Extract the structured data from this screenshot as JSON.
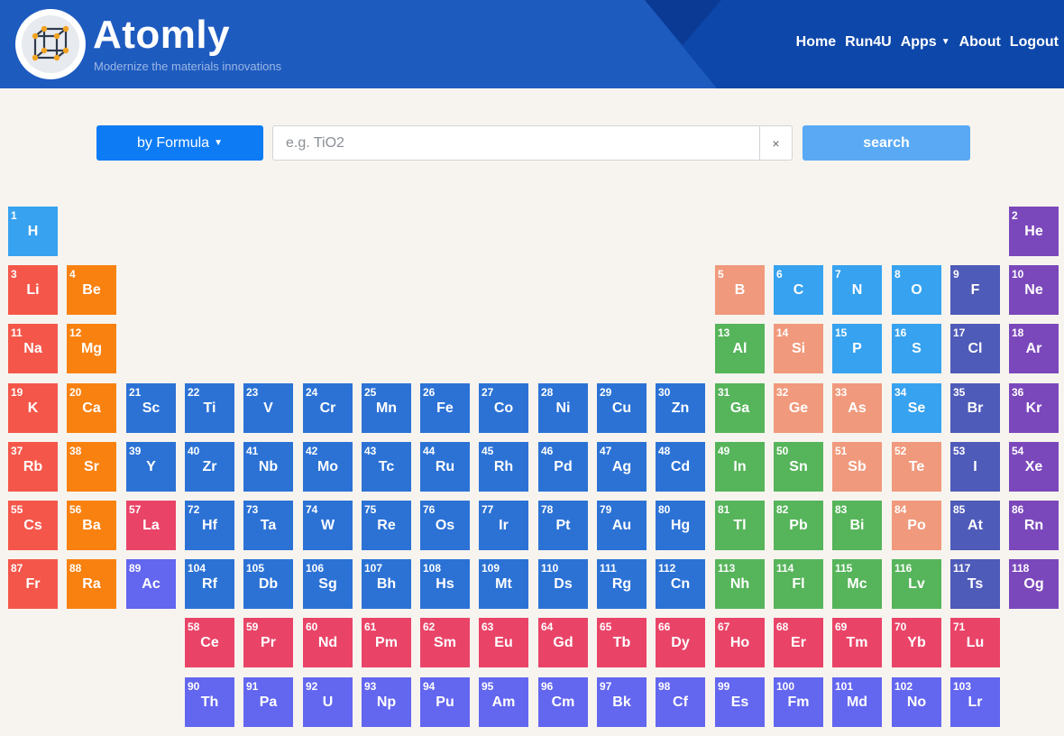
{
  "header": {
    "brand": "Atomly",
    "tagline": "Modernize the materials innovations",
    "nav": [
      {
        "label": "Home",
        "name": "nav-home"
      },
      {
        "label": "Run4U",
        "name": "nav-run4u"
      },
      {
        "label": "Apps",
        "name": "nav-apps",
        "dropdown": true
      },
      {
        "label": "About",
        "name": "nav-about"
      },
      {
        "label": "Logout",
        "name": "nav-logout"
      }
    ]
  },
  "search": {
    "mode_label": "by Formula",
    "placeholder": "e.g. TiO2",
    "value": "",
    "clear_label": "×",
    "submit_label": "search"
  },
  "colors": {
    "alkali": "#f4574a",
    "alkaline": "#f98110",
    "transition": "#2c72d5",
    "post_transition": "#56b45a",
    "metalloid": "#f0997c",
    "nonmetal": "#37a2ef",
    "halogen": "#4f5bb8",
    "noble": "#7b48bb",
    "lanthanide": "#e94468",
    "actinide": "#6366ef",
    "hydrogen": "#37a2ef"
  },
  "elements": [
    {
      "n": "1",
      "s": "H",
      "row": 1,
      "col": 1,
      "cat": "hydrogen"
    },
    {
      "n": "2",
      "s": "He",
      "row": 1,
      "col": 18,
      "cat": "noble"
    },
    {
      "n": "3",
      "s": "Li",
      "row": 2,
      "col": 1,
      "cat": "alkali"
    },
    {
      "n": "4",
      "s": "Be",
      "row": 2,
      "col": 2,
      "cat": "alkaline"
    },
    {
      "n": "5",
      "s": "B",
      "row": 2,
      "col": 13,
      "cat": "metalloid"
    },
    {
      "n": "6",
      "s": "C",
      "row": 2,
      "col": 14,
      "cat": "nonmetal"
    },
    {
      "n": "7",
      "s": "N",
      "row": 2,
      "col": 15,
      "cat": "nonmetal"
    },
    {
      "n": "8",
      "s": "O",
      "row": 2,
      "col": 16,
      "cat": "nonmetal"
    },
    {
      "n": "9",
      "s": "F",
      "row": 2,
      "col": 17,
      "cat": "halogen"
    },
    {
      "n": "10",
      "s": "Ne",
      "row": 2,
      "col": 18,
      "cat": "noble"
    },
    {
      "n": "11",
      "s": "Na",
      "row": 3,
      "col": 1,
      "cat": "alkali"
    },
    {
      "n": "12",
      "s": "Mg",
      "row": 3,
      "col": 2,
      "cat": "alkaline"
    },
    {
      "n": "13",
      "s": "Al",
      "row": 3,
      "col": 13,
      "cat": "post_transition"
    },
    {
      "n": "14",
      "s": "Si",
      "row": 3,
      "col": 14,
      "cat": "metalloid"
    },
    {
      "n": "15",
      "s": "P",
      "row": 3,
      "col": 15,
      "cat": "nonmetal"
    },
    {
      "n": "16",
      "s": "S",
      "row": 3,
      "col": 16,
      "cat": "nonmetal"
    },
    {
      "n": "17",
      "s": "Cl",
      "row": 3,
      "col": 17,
      "cat": "halogen"
    },
    {
      "n": "18",
      "s": "Ar",
      "row": 3,
      "col": 18,
      "cat": "noble"
    },
    {
      "n": "19",
      "s": "K",
      "row": 4,
      "col": 1,
      "cat": "alkali"
    },
    {
      "n": "20",
      "s": "Ca",
      "row": 4,
      "col": 2,
      "cat": "alkaline"
    },
    {
      "n": "21",
      "s": "Sc",
      "row": 4,
      "col": 3,
      "cat": "transition"
    },
    {
      "n": "22",
      "s": "Ti",
      "row": 4,
      "col": 4,
      "cat": "transition"
    },
    {
      "n": "23",
      "s": "V",
      "row": 4,
      "col": 5,
      "cat": "transition"
    },
    {
      "n": "24",
      "s": "Cr",
      "row": 4,
      "col": 6,
      "cat": "transition"
    },
    {
      "n": "25",
      "s": "Mn",
      "row": 4,
      "col": 7,
      "cat": "transition"
    },
    {
      "n": "26",
      "s": "Fe",
      "row": 4,
      "col": 8,
      "cat": "transition"
    },
    {
      "n": "27",
      "s": "Co",
      "row": 4,
      "col": 9,
      "cat": "transition"
    },
    {
      "n": "28",
      "s": "Ni",
      "row": 4,
      "col": 10,
      "cat": "transition"
    },
    {
      "n": "29",
      "s": "Cu",
      "row": 4,
      "col": 11,
      "cat": "transition"
    },
    {
      "n": "30",
      "s": "Zn",
      "row": 4,
      "col": 12,
      "cat": "transition"
    },
    {
      "n": "31",
      "s": "Ga",
      "row": 4,
      "col": 13,
      "cat": "post_transition"
    },
    {
      "n": "32",
      "s": "Ge",
      "row": 4,
      "col": 14,
      "cat": "metalloid"
    },
    {
      "n": "33",
      "s": "As",
      "row": 4,
      "col": 15,
      "cat": "metalloid"
    },
    {
      "n": "34",
      "s": "Se",
      "row": 4,
      "col": 16,
      "cat": "nonmetal"
    },
    {
      "n": "35",
      "s": "Br",
      "row": 4,
      "col": 17,
      "cat": "halogen"
    },
    {
      "n": "36",
      "s": "Kr",
      "row": 4,
      "col": 18,
      "cat": "noble"
    },
    {
      "n": "37",
      "s": "Rb",
      "row": 5,
      "col": 1,
      "cat": "alkali"
    },
    {
      "n": "38",
      "s": "Sr",
      "row": 5,
      "col": 2,
      "cat": "alkaline"
    },
    {
      "n": "39",
      "s": "Y",
      "row": 5,
      "col": 3,
      "cat": "transition"
    },
    {
      "n": "40",
      "s": "Zr",
      "row": 5,
      "col": 4,
      "cat": "transition"
    },
    {
      "n": "41",
      "s": "Nb",
      "row": 5,
      "col": 5,
      "cat": "transition"
    },
    {
      "n": "42",
      "s": "Mo",
      "row": 5,
      "col": 6,
      "cat": "transition"
    },
    {
      "n": "43",
      "s": "Tc",
      "row": 5,
      "col": 7,
      "cat": "transition"
    },
    {
      "n": "44",
      "s": "Ru",
      "row": 5,
      "col": 8,
      "cat": "transition"
    },
    {
      "n": "45",
      "s": "Rh",
      "row": 5,
      "col": 9,
      "cat": "transition"
    },
    {
      "n": "46",
      "s": "Pd",
      "row": 5,
      "col": 10,
      "cat": "transition"
    },
    {
      "n": "47",
      "s": "Ag",
      "row": 5,
      "col": 11,
      "cat": "transition"
    },
    {
      "n": "48",
      "s": "Cd",
      "row": 5,
      "col": 12,
      "cat": "transition"
    },
    {
      "n": "49",
      "s": "In",
      "row": 5,
      "col": 13,
      "cat": "post_transition"
    },
    {
      "n": "50",
      "s": "Sn",
      "row": 5,
      "col": 14,
      "cat": "post_transition"
    },
    {
      "n": "51",
      "s": "Sb",
      "row": 5,
      "col": 15,
      "cat": "metalloid"
    },
    {
      "n": "52",
      "s": "Te",
      "row": 5,
      "col": 16,
      "cat": "metalloid"
    },
    {
      "n": "53",
      "s": "I",
      "row": 5,
      "col": 17,
      "cat": "halogen"
    },
    {
      "n": "54",
      "s": "Xe",
      "row": 5,
      "col": 18,
      "cat": "noble"
    },
    {
      "n": "55",
      "s": "Cs",
      "row": 6,
      "col": 1,
      "cat": "alkali"
    },
    {
      "n": "56",
      "s": "Ba",
      "row": 6,
      "col": 2,
      "cat": "alkaline"
    },
    {
      "n": "57",
      "s": "La",
      "row": 6,
      "col": 3,
      "cat": "lanthanide"
    },
    {
      "n": "72",
      "s": "Hf",
      "row": 6,
      "col": 4,
      "cat": "transition"
    },
    {
      "n": "73",
      "s": "Ta",
      "row": 6,
      "col": 5,
      "cat": "transition"
    },
    {
      "n": "74",
      "s": "W",
      "row": 6,
      "col": 6,
      "cat": "transition"
    },
    {
      "n": "75",
      "s": "Re",
      "row": 6,
      "col": 7,
      "cat": "transition"
    },
    {
      "n": "76",
      "s": "Os",
      "row": 6,
      "col": 8,
      "cat": "transition"
    },
    {
      "n": "77",
      "s": "Ir",
      "row": 6,
      "col": 9,
      "cat": "transition"
    },
    {
      "n": "78",
      "s": "Pt",
      "row": 6,
      "col": 10,
      "cat": "transition"
    },
    {
      "n": "79",
      "s": "Au",
      "row": 6,
      "col": 11,
      "cat": "transition"
    },
    {
      "n": "80",
      "s": "Hg",
      "row": 6,
      "col": 12,
      "cat": "transition"
    },
    {
      "n": "81",
      "s": "Tl",
      "row": 6,
      "col": 13,
      "cat": "post_transition"
    },
    {
      "n": "82",
      "s": "Pb",
      "row": 6,
      "col": 14,
      "cat": "post_transition"
    },
    {
      "n": "83",
      "s": "Bi",
      "row": 6,
      "col": 15,
      "cat": "post_transition"
    },
    {
      "n": "84",
      "s": "Po",
      "row": 6,
      "col": 16,
      "cat": "metalloid"
    },
    {
      "n": "85",
      "s": "At",
      "row": 6,
      "col": 17,
      "cat": "halogen"
    },
    {
      "n": "86",
      "s": "Rn",
      "row": 6,
      "col": 18,
      "cat": "noble"
    },
    {
      "n": "87",
      "s": "Fr",
      "row": 7,
      "col": 1,
      "cat": "alkali"
    },
    {
      "n": "88",
      "s": "Ra",
      "row": 7,
      "col": 2,
      "cat": "alkaline"
    },
    {
      "n": "89",
      "s": "Ac",
      "row": 7,
      "col": 3,
      "cat": "actinide"
    },
    {
      "n": "104",
      "s": "Rf",
      "row": 7,
      "col": 4,
      "cat": "transition"
    },
    {
      "n": "105",
      "s": "Db",
      "row": 7,
      "col": 5,
      "cat": "transition"
    },
    {
      "n": "106",
      "s": "Sg",
      "row": 7,
      "col": 6,
      "cat": "transition"
    },
    {
      "n": "107",
      "s": "Bh",
      "row": 7,
      "col": 7,
      "cat": "transition"
    },
    {
      "n": "108",
      "s": "Hs",
      "row": 7,
      "col": 8,
      "cat": "transition"
    },
    {
      "n": "109",
      "s": "Mt",
      "row": 7,
      "col": 9,
      "cat": "transition"
    },
    {
      "n": "110",
      "s": "Ds",
      "row": 7,
      "col": 10,
      "cat": "transition"
    },
    {
      "n": "111",
      "s": "Rg",
      "row": 7,
      "col": 11,
      "cat": "transition"
    },
    {
      "n": "112",
      "s": "Cn",
      "row": 7,
      "col": 12,
      "cat": "transition"
    },
    {
      "n": "113",
      "s": "Nh",
      "row": 7,
      "col": 13,
      "cat": "post_transition"
    },
    {
      "n": "114",
      "s": "Fl",
      "row": 7,
      "col": 14,
      "cat": "post_transition"
    },
    {
      "n": "115",
      "s": "Mc",
      "row": 7,
      "col": 15,
      "cat": "post_transition"
    },
    {
      "n": "116",
      "s": "Lv",
      "row": 7,
      "col": 16,
      "cat": "post_transition"
    },
    {
      "n": "117",
      "s": "Ts",
      "row": 7,
      "col": 17,
      "cat": "halogen"
    },
    {
      "n": "118",
      "s": "Og",
      "row": 7,
      "col": 18,
      "cat": "noble"
    },
    {
      "n": "58",
      "s": "Ce",
      "row": 8,
      "col": 4,
      "cat": "lanthanide"
    },
    {
      "n": "59",
      "s": "Pr",
      "row": 8,
      "col": 5,
      "cat": "lanthanide"
    },
    {
      "n": "60",
      "s": "Nd",
      "row": 8,
      "col": 6,
      "cat": "lanthanide"
    },
    {
      "n": "61",
      "s": "Pm",
      "row": 8,
      "col": 7,
      "cat": "lanthanide"
    },
    {
      "n": "62",
      "s": "Sm",
      "row": 8,
      "col": 8,
      "cat": "lanthanide"
    },
    {
      "n": "63",
      "s": "Eu",
      "row": 8,
      "col": 9,
      "cat": "lanthanide"
    },
    {
      "n": "64",
      "s": "Gd",
      "row": 8,
      "col": 10,
      "cat": "lanthanide"
    },
    {
      "n": "65",
      "s": "Tb",
      "row": 8,
      "col": 11,
      "cat": "lanthanide"
    },
    {
      "n": "66",
      "s": "Dy",
      "row": 8,
      "col": 12,
      "cat": "lanthanide"
    },
    {
      "n": "67",
      "s": "Ho",
      "row": 8,
      "col": 13,
      "cat": "lanthanide"
    },
    {
      "n": "68",
      "s": "Er",
      "row": 8,
      "col": 14,
      "cat": "lanthanide"
    },
    {
      "n": "69",
      "s": "Tm",
      "row": 8,
      "col": 15,
      "cat": "lanthanide"
    },
    {
      "n": "70",
      "s": "Yb",
      "row": 8,
      "col": 16,
      "cat": "lanthanide"
    },
    {
      "n": "71",
      "s": "Lu",
      "row": 8,
      "col": 17,
      "cat": "lanthanide"
    },
    {
      "n": "90",
      "s": "Th",
      "row": 9,
      "col": 4,
      "cat": "actinide"
    },
    {
      "n": "91",
      "s": "Pa",
      "row": 9,
      "col": 5,
      "cat": "actinide"
    },
    {
      "n": "92",
      "s": "U",
      "row": 9,
      "col": 6,
      "cat": "actinide"
    },
    {
      "n": "93",
      "s": "Np",
      "row": 9,
      "col": 7,
      "cat": "actinide"
    },
    {
      "n": "94",
      "s": "Pu",
      "row": 9,
      "col": 8,
      "cat": "actinide"
    },
    {
      "n": "95",
      "s": "Am",
      "row": 9,
      "col": 9,
      "cat": "actinide"
    },
    {
      "n": "96",
      "s": "Cm",
      "row": 9,
      "col": 10,
      "cat": "actinide"
    },
    {
      "n": "97",
      "s": "Bk",
      "row": 9,
      "col": 11,
      "cat": "actinide"
    },
    {
      "n": "98",
      "s": "Cf",
      "row": 9,
      "col": 12,
      "cat": "actinide"
    },
    {
      "n": "99",
      "s": "Es",
      "row": 9,
      "col": 13,
      "cat": "actinide"
    },
    {
      "n": "100",
      "s": "Fm",
      "row": 9,
      "col": 14,
      "cat": "actinide"
    },
    {
      "n": "101",
      "s": "Md",
      "row": 9,
      "col": 15,
      "cat": "actinide"
    },
    {
      "n": "102",
      "s": "No",
      "row": 9,
      "col": 16,
      "cat": "actinide"
    },
    {
      "n": "103",
      "s": "Lr",
      "row": 9,
      "col": 17,
      "cat": "actinide"
    }
  ]
}
